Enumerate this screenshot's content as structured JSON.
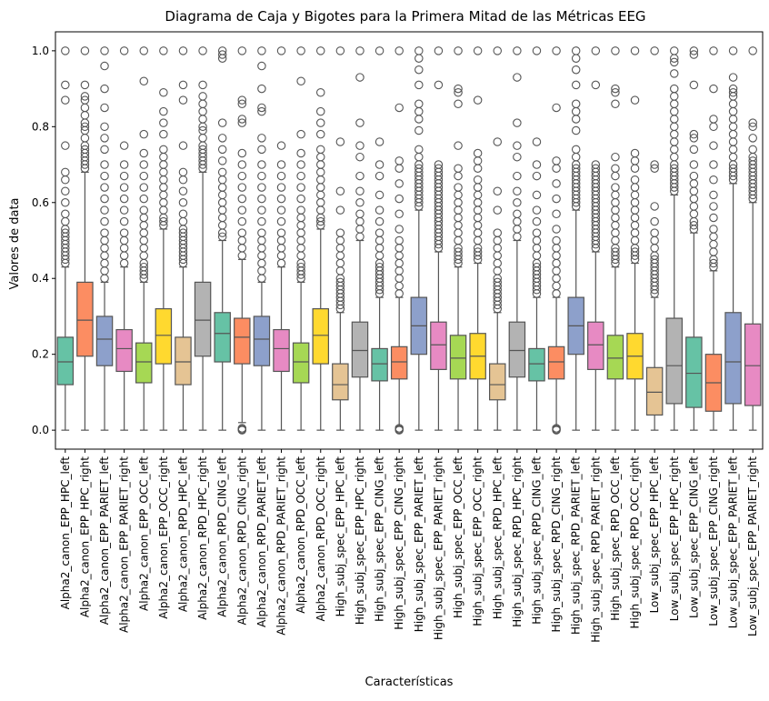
{
  "chart_data": {
    "type": "box",
    "title": "Diagrama de Caja y Bigotes para la Primera Mitad de las Métricas EEG",
    "xlabel": "Características",
    "ylabel": "Valores de data",
    "ylim": [
      -0.05,
      1.05
    ],
    "yticks": [
      0.0,
      0.2,
      0.4,
      0.6,
      0.8,
      1.0
    ],
    "ytick_labels": [
      "0.0",
      "0.2",
      "0.4",
      "0.6",
      "0.8",
      "1.0"
    ],
    "grid": false,
    "legend": "none",
    "box_edge_color": "#555555",
    "outlier_color": "#555555",
    "categories": [
      "Alpha2_canon_EPP_HPC_left",
      "Alpha2_canon_EPP_HPC_right",
      "Alpha2_canon_EPP_PARIET_left",
      "Alpha2_canon_EPP_PARIET_right",
      "Alpha2_canon_EPP_OCC_left",
      "Alpha2_canon_EPP_OCC_right",
      "Alpha2_canon_RPD_HPC_left",
      "Alpha2_canon_RPD_HPC_right",
      "Alpha2_canon_RPD_CING_left",
      "Alpha2_canon_RPD_CING_right",
      "Alpha2_canon_RPD_PARIET_left",
      "Alpha2_canon_RPD_PARIET_right",
      "Alpha2_canon_RPD_OCC_left",
      "Alpha2_canon_RPD_OCC_right",
      "High_subj_spec_EPP_HPC_left",
      "High_subj_spec_EPP_HPC_right",
      "High_subj_spec_EPP_CING_left",
      "High_subj_spec_EPP_CING_right",
      "High_subj_spec_EPP_PARIET_left",
      "High_subj_spec_EPP_PARIET_right",
      "High_subj_spec_EPP_OCC_left",
      "High_subj_spec_EPP_OCC_right",
      "High_subj_spec_RPD_HPC_left",
      "High_subj_spec_RPD_HPC_right",
      "High_subj_spec_RPD_CING_left",
      "High_subj_spec_RPD_CING_right",
      "High_subj_spec_RPD_PARIET_left",
      "High_subj_spec_RPD_PARIET_right",
      "High_subj_spec_RPD_OCC_left",
      "High_subj_spec_RPD_OCC_right",
      "Low_subj_spec_EPP_HPC_left",
      "Low_subj_spec_EPP_HPC_right",
      "Low_subj_spec_EPP_CING_left",
      "Low_subj_spec_EPP_CING_right",
      "Low_subj_spec_EPP_PARIET_left",
      "Low_subj_spec_EPP_PARIET_right"
    ],
    "box_colors": [
      "#66c2a5",
      "#fc8d62",
      "#8da0cb",
      "#e78ac3",
      "#a6d854",
      "#ffd92f",
      "#e5c494",
      "#b3b3b3",
      "#66c2a5",
      "#fc8d62",
      "#8da0cb",
      "#e78ac3",
      "#a6d854",
      "#ffd92f",
      "#e5c494",
      "#b3b3b3",
      "#66c2a5",
      "#fc8d62",
      "#8da0cb",
      "#e78ac3",
      "#a6d854",
      "#ffd92f",
      "#e5c494",
      "#b3b3b3",
      "#66c2a5",
      "#fc8d62",
      "#8da0cb",
      "#e78ac3",
      "#a6d854",
      "#ffd92f",
      "#e5c494",
      "#b3b3b3",
      "#66c2a5",
      "#fc8d62",
      "#8da0cb",
      "#e78ac3"
    ],
    "boxes": [
      {
        "whisker_low": 0.0,
        "q1": 0.12,
        "median": 0.18,
        "q3": 0.245,
        "whisker_high": 0.43,
        "outliers": [
          0.44,
          0.45,
          0.46,
          0.47,
          0.48,
          0.49,
          0.5,
          0.51,
          0.52,
          0.53,
          0.55,
          0.57,
          0.6,
          0.63,
          0.66,
          0.68,
          0.75,
          0.87,
          0.91,
          1.0
        ]
      },
      {
        "whisker_low": 0.0,
        "q1": 0.195,
        "median": 0.29,
        "q3": 0.39,
        "whisker_high": 0.68,
        "outliers": [
          0.69,
          0.7,
          0.71,
          0.72,
          0.73,
          0.74,
          0.75,
          0.77,
          0.79,
          0.8,
          0.81,
          0.83,
          0.85,
          0.87,
          0.88,
          0.91,
          1.0
        ]
      },
      {
        "whisker_low": 0.0,
        "q1": 0.17,
        "median": 0.24,
        "q3": 0.3,
        "whisker_high": 0.39,
        "outliers": [
          0.4,
          0.42,
          0.44,
          0.46,
          0.48,
          0.5,
          0.52,
          0.55,
          0.58,
          0.61,
          0.64,
          0.67,
          0.7,
          0.74,
          0.77,
          0.8,
          0.85,
          0.9,
          0.96,
          1.0
        ]
      },
      {
        "whisker_low": 0.0,
        "q1": 0.155,
        "median": 0.215,
        "q3": 0.265,
        "whisker_high": 0.43,
        "outliers": [
          0.44,
          0.46,
          0.48,
          0.5,
          0.52,
          0.55,
          0.58,
          0.61,
          0.64,
          0.67,
          0.7,
          0.75,
          1.0
        ]
      },
      {
        "whisker_low": 0.0,
        "q1": 0.125,
        "median": 0.18,
        "q3": 0.23,
        "whisker_high": 0.39,
        "outliers": [
          0.4,
          0.41,
          0.42,
          0.43,
          0.44,
          0.46,
          0.48,
          0.5,
          0.52,
          0.54,
          0.56,
          0.58,
          0.61,
          0.64,
          0.67,
          0.7,
          0.73,
          0.78,
          0.92,
          1.0
        ]
      },
      {
        "whisker_low": 0.0,
        "q1": 0.175,
        "median": 0.25,
        "q3": 0.32,
        "whisker_high": 0.53,
        "outliers": [
          0.54,
          0.55,
          0.56,
          0.58,
          0.6,
          0.62,
          0.64,
          0.66,
          0.68,
          0.7,
          0.72,
          0.74,
          0.78,
          0.81,
          0.84,
          0.89,
          1.0
        ]
      },
      {
        "whisker_low": 0.0,
        "q1": 0.12,
        "median": 0.18,
        "q3": 0.245,
        "whisker_high": 0.43,
        "outliers": [
          0.44,
          0.45,
          0.46,
          0.47,
          0.48,
          0.49,
          0.5,
          0.51,
          0.52,
          0.53,
          0.55,
          0.57,
          0.6,
          0.63,
          0.66,
          0.68,
          0.75,
          0.87,
          0.91,
          1.0
        ]
      },
      {
        "whisker_low": 0.0,
        "q1": 0.195,
        "median": 0.29,
        "q3": 0.39,
        "whisker_high": 0.68,
        "outliers": [
          0.69,
          0.7,
          0.71,
          0.72,
          0.73,
          0.74,
          0.75,
          0.77,
          0.79,
          0.8,
          0.82,
          0.84,
          0.86,
          0.88,
          0.91,
          1.0
        ]
      },
      {
        "whisker_low": 0.0,
        "q1": 0.18,
        "median": 0.255,
        "q3": 0.31,
        "whisker_high": 0.5,
        "outliers": [
          0.51,
          0.52,
          0.54,
          0.56,
          0.58,
          0.6,
          0.62,
          0.64,
          0.66,
          0.68,
          0.71,
          0.74,
          0.77,
          0.81,
          0.98,
          0.99,
          1.0
        ]
      },
      {
        "whisker_low": 0.02,
        "q1": 0.175,
        "median": 0.245,
        "q3": 0.295,
        "whisker_high": 0.45,
        "outliers": [
          0.0,
          0.002,
          0.005,
          0.46,
          0.48,
          0.5,
          0.52,
          0.55,
          0.58,
          0.61,
          0.64,
          0.67,
          0.7,
          0.73,
          0.81,
          0.82,
          0.86,
          0.87,
          1.0
        ]
      },
      {
        "whisker_low": 0.0,
        "q1": 0.17,
        "median": 0.24,
        "q3": 0.3,
        "whisker_high": 0.39,
        "outliers": [
          0.4,
          0.42,
          0.44,
          0.46,
          0.48,
          0.5,
          0.52,
          0.55,
          0.58,
          0.61,
          0.64,
          0.67,
          0.7,
          0.74,
          0.77,
          0.84,
          0.85,
          0.9,
          0.96,
          1.0
        ]
      },
      {
        "whisker_low": 0.0,
        "q1": 0.155,
        "median": 0.215,
        "q3": 0.265,
        "whisker_high": 0.43,
        "outliers": [
          0.44,
          0.46,
          0.48,
          0.5,
          0.52,
          0.55,
          0.58,
          0.61,
          0.64,
          0.67,
          0.7,
          0.75,
          1.0
        ]
      },
      {
        "whisker_low": 0.0,
        "q1": 0.125,
        "median": 0.18,
        "q3": 0.23,
        "whisker_high": 0.39,
        "outliers": [
          0.4,
          0.41,
          0.42,
          0.43,
          0.44,
          0.46,
          0.48,
          0.5,
          0.52,
          0.54,
          0.56,
          0.58,
          0.61,
          0.64,
          0.67,
          0.7,
          0.73,
          0.78,
          0.92,
          1.0
        ]
      },
      {
        "whisker_low": 0.0,
        "q1": 0.175,
        "median": 0.25,
        "q3": 0.32,
        "whisker_high": 0.53,
        "outliers": [
          0.54,
          0.55,
          0.56,
          0.58,
          0.6,
          0.62,
          0.64,
          0.66,
          0.68,
          0.7,
          0.72,
          0.74,
          0.78,
          0.81,
          0.84,
          0.89,
          1.0
        ]
      },
      {
        "whisker_low": 0.0,
        "q1": 0.08,
        "median": 0.12,
        "q3": 0.175,
        "whisker_high": 0.31,
        "outliers": [
          0.32,
          0.33,
          0.34,
          0.35,
          0.36,
          0.37,
          0.38,
          0.39,
          0.4,
          0.42,
          0.44,
          0.46,
          0.48,
          0.5,
          0.52,
          0.58,
          0.63,
          0.76,
          1.0
        ]
      },
      {
        "whisker_low": 0.0,
        "q1": 0.14,
        "median": 0.21,
        "q3": 0.285,
        "whisker_high": 0.5,
        "outliers": [
          0.51,
          0.53,
          0.55,
          0.57,
          0.6,
          0.63,
          0.67,
          0.72,
          0.75,
          0.81,
          0.93,
          1.0
        ]
      },
      {
        "whisker_low": 0.0,
        "q1": 0.13,
        "median": 0.175,
        "q3": 0.215,
        "whisker_high": 0.35,
        "outliers": [
          0.36,
          0.37,
          0.38,
          0.39,
          0.4,
          0.41,
          0.42,
          0.43,
          0.44,
          0.46,
          0.48,
          0.5,
          0.52,
          0.55,
          0.58,
          0.62,
          0.67,
          0.7,
          0.76,
          1.0
        ]
      },
      {
        "whisker_low": 0.01,
        "q1": 0.135,
        "median": 0.18,
        "q3": 0.22,
        "whisker_high": 0.35,
        "outliers": [
          0.0,
          0.002,
          0.005,
          0.36,
          0.38,
          0.4,
          0.42,
          0.44,
          0.46,
          0.48,
          0.5,
          0.53,
          0.57,
          0.61,
          0.65,
          0.69,
          0.71,
          0.85,
          1.0
        ]
      },
      {
        "whisker_low": 0.0,
        "q1": 0.2,
        "median": 0.275,
        "q3": 0.35,
        "whisker_high": 0.58,
        "outliers": [
          0.59,
          0.6,
          0.61,
          0.62,
          0.63,
          0.64,
          0.65,
          0.66,
          0.67,
          0.68,
          0.69,
          0.7,
          0.72,
          0.74,
          0.79,
          0.82,
          0.84,
          0.86,
          0.91,
          0.95,
          0.98,
          1.0
        ]
      },
      {
        "whisker_low": 0.0,
        "q1": 0.16,
        "median": 0.225,
        "q3": 0.285,
        "whisker_high": 0.47,
        "outliers": [
          0.48,
          0.49,
          0.5,
          0.51,
          0.52,
          0.53,
          0.54,
          0.55,
          0.56,
          0.57,
          0.58,
          0.59,
          0.6,
          0.61,
          0.62,
          0.63,
          0.64,
          0.65,
          0.66,
          0.67,
          0.68,
          0.69,
          0.7,
          0.91,
          1.0
        ]
      },
      {
        "whisker_low": 0.0,
        "q1": 0.135,
        "median": 0.19,
        "q3": 0.25,
        "whisker_high": 0.43,
        "outliers": [
          0.44,
          0.45,
          0.46,
          0.47,
          0.48,
          0.5,
          0.52,
          0.54,
          0.56,
          0.58,
          0.6,
          0.62,
          0.64,
          0.67,
          0.69,
          0.75,
          0.86,
          0.89,
          0.9,
          1.0
        ]
      },
      {
        "whisker_low": 0.0,
        "q1": 0.135,
        "median": 0.195,
        "q3": 0.255,
        "whisker_high": 0.44,
        "outliers": [
          0.45,
          0.46,
          0.47,
          0.48,
          0.5,
          0.52,
          0.54,
          0.56,
          0.58,
          0.6,
          0.62,
          0.64,
          0.66,
          0.69,
          0.71,
          0.73,
          0.87,
          1.0
        ]
      },
      {
        "whisker_low": 0.0,
        "q1": 0.08,
        "median": 0.12,
        "q3": 0.175,
        "whisker_high": 0.31,
        "outliers": [
          0.32,
          0.33,
          0.34,
          0.35,
          0.36,
          0.37,
          0.38,
          0.39,
          0.4,
          0.42,
          0.44,
          0.46,
          0.48,
          0.5,
          0.52,
          0.58,
          0.63,
          0.76,
          1.0
        ]
      },
      {
        "whisker_low": 0.0,
        "q1": 0.14,
        "median": 0.21,
        "q3": 0.285,
        "whisker_high": 0.5,
        "outliers": [
          0.51,
          0.53,
          0.55,
          0.57,
          0.6,
          0.63,
          0.67,
          0.72,
          0.75,
          0.81,
          0.93,
          1.0
        ]
      },
      {
        "whisker_low": 0.0,
        "q1": 0.13,
        "median": 0.175,
        "q3": 0.215,
        "whisker_high": 0.35,
        "outliers": [
          0.36,
          0.37,
          0.38,
          0.39,
          0.4,
          0.41,
          0.42,
          0.43,
          0.44,
          0.46,
          0.48,
          0.5,
          0.52,
          0.55,
          0.58,
          0.62,
          0.67,
          0.7,
          0.76,
          1.0
        ]
      },
      {
        "whisker_low": 0.01,
        "q1": 0.135,
        "median": 0.18,
        "q3": 0.22,
        "whisker_high": 0.35,
        "outliers": [
          0.0,
          0.002,
          0.005,
          0.36,
          0.38,
          0.4,
          0.42,
          0.44,
          0.46,
          0.48,
          0.5,
          0.53,
          0.57,
          0.61,
          0.65,
          0.69,
          0.71,
          0.85,
          1.0
        ]
      },
      {
        "whisker_low": 0.0,
        "q1": 0.2,
        "median": 0.275,
        "q3": 0.35,
        "whisker_high": 0.58,
        "outliers": [
          0.59,
          0.6,
          0.61,
          0.62,
          0.63,
          0.64,
          0.65,
          0.66,
          0.67,
          0.68,
          0.69,
          0.7,
          0.72,
          0.74,
          0.79,
          0.82,
          0.84,
          0.86,
          0.91,
          0.95,
          0.98,
          1.0
        ]
      },
      {
        "whisker_low": 0.0,
        "q1": 0.16,
        "median": 0.225,
        "q3": 0.285,
        "whisker_high": 0.47,
        "outliers": [
          0.48,
          0.49,
          0.5,
          0.51,
          0.52,
          0.53,
          0.54,
          0.55,
          0.56,
          0.57,
          0.58,
          0.59,
          0.6,
          0.61,
          0.62,
          0.63,
          0.64,
          0.65,
          0.66,
          0.67,
          0.68,
          0.69,
          0.7,
          0.91,
          1.0
        ]
      },
      {
        "whisker_low": 0.0,
        "q1": 0.135,
        "median": 0.19,
        "q3": 0.25,
        "whisker_high": 0.43,
        "outliers": [
          0.44,
          0.45,
          0.46,
          0.47,
          0.48,
          0.5,
          0.52,
          0.54,
          0.56,
          0.58,
          0.6,
          0.62,
          0.64,
          0.67,
          0.69,
          0.72,
          0.86,
          0.89,
          0.9,
          1.0
        ]
      },
      {
        "whisker_low": 0.0,
        "q1": 0.135,
        "median": 0.195,
        "q3": 0.255,
        "whisker_high": 0.44,
        "outliers": [
          0.45,
          0.46,
          0.47,
          0.48,
          0.5,
          0.52,
          0.54,
          0.56,
          0.58,
          0.6,
          0.62,
          0.64,
          0.66,
          0.69,
          0.71,
          0.73,
          0.87,
          1.0
        ]
      },
      {
        "whisker_low": 0.0,
        "q1": 0.04,
        "median": 0.1,
        "q3": 0.165,
        "whisker_high": 0.35,
        "outliers": [
          0.36,
          0.37,
          0.38,
          0.39,
          0.4,
          0.41,
          0.42,
          0.43,
          0.44,
          0.45,
          0.46,
          0.48,
          0.5,
          0.52,
          0.55,
          0.59,
          0.69,
          0.7,
          1.0
        ]
      },
      {
        "whisker_low": 0.0,
        "q1": 0.07,
        "median": 0.17,
        "q3": 0.295,
        "whisker_high": 0.62,
        "outliers": [
          0.63,
          0.64,
          0.65,
          0.66,
          0.67,
          0.68,
          0.69,
          0.7,
          0.72,
          0.74,
          0.76,
          0.78,
          0.8,
          0.82,
          0.84,
          0.86,
          0.88,
          0.9,
          0.94,
          0.97,
          0.98,
          1.0
        ]
      },
      {
        "whisker_low": 0.0,
        "q1": 0.06,
        "median": 0.15,
        "q3": 0.245,
        "whisker_high": 0.52,
        "outliers": [
          0.53,
          0.54,
          0.55,
          0.57,
          0.59,
          0.61,
          0.63,
          0.65,
          0.67,
          0.7,
          0.74,
          0.77,
          0.78,
          0.91,
          0.99,
          1.0
        ]
      },
      {
        "whisker_low": 0.0,
        "q1": 0.05,
        "median": 0.125,
        "q3": 0.2,
        "whisker_high": 0.42,
        "outliers": [
          0.43,
          0.44,
          0.45,
          0.47,
          0.49,
          0.51,
          0.53,
          0.56,
          0.59,
          0.62,
          0.66,
          0.7,
          0.75,
          0.8,
          0.82,
          0.9,
          1.0
        ]
      },
      {
        "whisker_low": 0.0,
        "q1": 0.07,
        "median": 0.18,
        "q3": 0.31,
        "whisker_high": 0.65,
        "outliers": [
          0.66,
          0.67,
          0.68,
          0.69,
          0.7,
          0.72,
          0.74,
          0.76,
          0.78,
          0.8,
          0.82,
          0.84,
          0.86,
          0.88,
          0.89,
          0.9,
          0.93,
          1.0
        ]
      },
      {
        "whisker_low": 0.0,
        "q1": 0.065,
        "median": 0.17,
        "q3": 0.28,
        "whisker_high": 0.6,
        "outliers": [
          0.61,
          0.62,
          0.63,
          0.64,
          0.65,
          0.66,
          0.67,
          0.68,
          0.69,
          0.7,
          0.71,
          0.72,
          0.74,
          0.77,
          0.8,
          0.81,
          1.0
        ]
      }
    ]
  }
}
